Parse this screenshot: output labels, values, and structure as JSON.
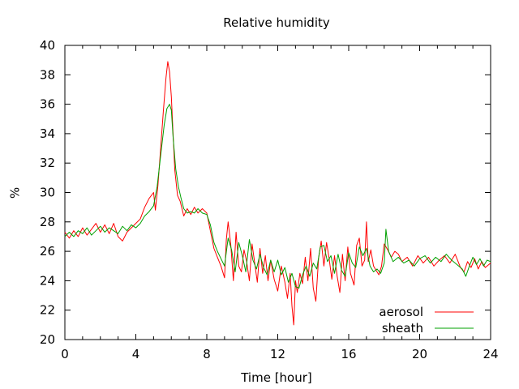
{
  "chart_data": {
    "type": "line",
    "title": "Relative humidity",
    "xlabel": "Time [hour]",
    "ylabel": "%",
    "xlim": [
      0,
      24
    ],
    "ylim": [
      20,
      40
    ],
    "x_ticks": [
      0,
      4,
      8,
      12,
      16,
      20,
      24
    ],
    "y_ticks": [
      20,
      22,
      24,
      26,
      28,
      30,
      32,
      34,
      36,
      38,
      40
    ],
    "grid": false,
    "legend_position": "bottom-right",
    "series": [
      {
        "name": "aerosol",
        "color": "#ff0000",
        "points": [
          [
            0.0,
            27.3
          ],
          [
            0.25,
            26.9
          ],
          [
            0.5,
            27.4
          ],
          [
            0.75,
            27.0
          ],
          [
            1.0,
            27.6
          ],
          [
            1.25,
            27.1
          ],
          [
            1.5,
            27.5
          ],
          [
            1.75,
            27.9
          ],
          [
            2.0,
            27.3
          ],
          [
            2.25,
            27.8
          ],
          [
            2.5,
            27.2
          ],
          [
            2.75,
            27.9
          ],
          [
            3.0,
            27.0
          ],
          [
            3.25,
            26.7
          ],
          [
            3.5,
            27.3
          ],
          [
            3.75,
            27.6
          ],
          [
            4.0,
            27.9
          ],
          [
            4.25,
            28.2
          ],
          [
            4.5,
            29.0
          ],
          [
            4.75,
            29.6
          ],
          [
            5.0,
            30.0
          ],
          [
            5.1,
            28.8
          ],
          [
            5.25,
            30.5
          ],
          [
            5.4,
            33.0
          ],
          [
            5.55,
            35.5
          ],
          [
            5.7,
            37.8
          ],
          [
            5.8,
            38.9
          ],
          [
            5.9,
            38.2
          ],
          [
            6.0,
            36.5
          ],
          [
            6.1,
            34.0
          ],
          [
            6.2,
            31.5
          ],
          [
            6.35,
            29.8
          ],
          [
            6.5,
            29.4
          ],
          [
            6.7,
            28.4
          ],
          [
            6.9,
            28.9
          ],
          [
            7.1,
            28.5
          ],
          [
            7.3,
            29.0
          ],
          [
            7.5,
            28.6
          ],
          [
            7.75,
            28.9
          ],
          [
            8.0,
            28.6
          ],
          [
            8.2,
            27.4
          ],
          [
            8.4,
            26.2
          ],
          [
            8.6,
            25.6
          ],
          [
            8.8,
            25.0
          ],
          [
            9.0,
            24.2
          ],
          [
            9.1,
            26.8
          ],
          [
            9.2,
            28.0
          ],
          [
            9.35,
            26.5
          ],
          [
            9.5,
            24.0
          ],
          [
            9.65,
            27.3
          ],
          [
            9.8,
            25.0
          ],
          [
            9.95,
            24.6
          ],
          [
            10.1,
            26.1
          ],
          [
            10.25,
            25.3
          ],
          [
            10.4,
            24.0
          ],
          [
            10.55,
            26.5
          ],
          [
            10.7,
            25.2
          ],
          [
            10.85,
            23.9
          ],
          [
            11.0,
            26.2
          ],
          [
            11.15,
            24.5
          ],
          [
            11.3,
            25.7
          ],
          [
            11.45,
            24.0
          ],
          [
            11.6,
            25.4
          ],
          [
            11.8,
            24.1
          ],
          [
            12.0,
            23.3
          ],
          [
            12.2,
            25.0
          ],
          [
            12.4,
            23.9
          ],
          [
            12.55,
            22.8
          ],
          [
            12.7,
            24.5
          ],
          [
            12.8,
            22.3
          ],
          [
            12.9,
            21.0
          ],
          [
            13.0,
            24.0
          ],
          [
            13.1,
            23.2
          ],
          [
            13.25,
            24.5
          ],
          [
            13.4,
            23.8
          ],
          [
            13.55,
            25.6
          ],
          [
            13.7,
            24.0
          ],
          [
            13.85,
            26.2
          ],
          [
            14.0,
            23.5
          ],
          [
            14.15,
            22.6
          ],
          [
            14.3,
            25.5
          ],
          [
            14.45,
            26.7
          ],
          [
            14.6,
            25.0
          ],
          [
            14.75,
            26.6
          ],
          [
            14.9,
            25.5
          ],
          [
            15.05,
            24.1
          ],
          [
            15.2,
            25.7
          ],
          [
            15.35,
            24.3
          ],
          [
            15.5,
            23.2
          ],
          [
            15.65,
            25.8
          ],
          [
            15.8,
            24.0
          ],
          [
            15.95,
            26.3
          ],
          [
            16.1,
            24.5
          ],
          [
            16.3,
            23.7
          ],
          [
            16.45,
            26.4
          ],
          [
            16.6,
            26.9
          ],
          [
            16.75,
            25.0
          ],
          [
            16.9,
            25.4
          ],
          [
            17.0,
            28.0
          ],
          [
            17.1,
            25.3
          ],
          [
            17.25,
            26.1
          ],
          [
            17.4,
            25.0
          ],
          [
            17.55,
            24.7
          ],
          [
            17.7,
            24.4
          ],
          [
            17.85,
            25.0
          ],
          [
            18.0,
            26.5
          ],
          [
            18.2,
            26.1
          ],
          [
            18.4,
            25.6
          ],
          [
            18.6,
            26.0
          ],
          [
            18.8,
            25.8
          ],
          [
            19.0,
            25.3
          ],
          [
            19.3,
            25.6
          ],
          [
            19.6,
            25.0
          ],
          [
            19.9,
            25.7
          ],
          [
            20.2,
            25.2
          ],
          [
            20.5,
            25.6
          ],
          [
            20.8,
            25.0
          ],
          [
            21.1,
            25.4
          ],
          [
            21.4,
            25.7
          ],
          [
            21.7,
            25.2
          ],
          [
            22.0,
            25.8
          ],
          [
            22.3,
            24.9
          ],
          [
            22.5,
            24.6
          ],
          [
            22.7,
            25.3
          ],
          [
            22.9,
            24.9
          ],
          [
            23.1,
            25.5
          ],
          [
            23.3,
            24.8
          ],
          [
            23.5,
            25.3
          ],
          [
            23.7,
            24.9
          ],
          [
            24.0,
            25.2
          ]
        ]
      },
      {
        "name": "sheath",
        "color": "#00a000",
        "points": [
          [
            0.0,
            27.0
          ],
          [
            0.25,
            27.3
          ],
          [
            0.5,
            27.0
          ],
          [
            0.75,
            27.4
          ],
          [
            1.0,
            27.2
          ],
          [
            1.25,
            27.6
          ],
          [
            1.5,
            27.1
          ],
          [
            1.75,
            27.4
          ],
          [
            2.0,
            27.7
          ],
          [
            2.25,
            27.3
          ],
          [
            2.5,
            27.6
          ],
          [
            2.75,
            27.4
          ],
          [
            3.0,
            27.2
          ],
          [
            3.25,
            27.7
          ],
          [
            3.5,
            27.4
          ],
          [
            3.75,
            27.8
          ],
          [
            4.0,
            27.6
          ],
          [
            4.25,
            27.9
          ],
          [
            4.5,
            28.4
          ],
          [
            4.75,
            28.7
          ],
          [
            5.0,
            29.1
          ],
          [
            5.2,
            30.4
          ],
          [
            5.4,
            32.5
          ],
          [
            5.6,
            34.6
          ],
          [
            5.75,
            35.7
          ],
          [
            5.9,
            36.0
          ],
          [
            6.0,
            35.6
          ],
          [
            6.1,
            33.8
          ],
          [
            6.25,
            31.6
          ],
          [
            6.4,
            30.4
          ],
          [
            6.55,
            29.6
          ],
          [
            6.7,
            28.9
          ],
          [
            6.9,
            28.6
          ],
          [
            7.1,
            28.7
          ],
          [
            7.3,
            28.6
          ],
          [
            7.5,
            28.9
          ],
          [
            7.75,
            28.6
          ],
          [
            8.0,
            28.5
          ],
          [
            8.2,
            27.8
          ],
          [
            8.4,
            26.6
          ],
          [
            8.6,
            26.0
          ],
          [
            8.8,
            25.5
          ],
          [
            9.0,
            25.0
          ],
          [
            9.2,
            26.9
          ],
          [
            9.4,
            26.1
          ],
          [
            9.6,
            24.6
          ],
          [
            9.8,
            26.6
          ],
          [
            10.0,
            25.7
          ],
          [
            10.2,
            24.6
          ],
          [
            10.4,
            26.8
          ],
          [
            10.6,
            25.4
          ],
          [
            10.8,
            24.8
          ],
          [
            11.0,
            25.8
          ],
          [
            11.2,
            24.9
          ],
          [
            11.4,
            24.4
          ],
          [
            11.6,
            25.4
          ],
          [
            11.8,
            24.6
          ],
          [
            12.0,
            25.4
          ],
          [
            12.2,
            24.4
          ],
          [
            12.4,
            24.9
          ],
          [
            12.6,
            23.9
          ],
          [
            12.8,
            24.5
          ],
          [
            13.0,
            23.6
          ],
          [
            13.2,
            23.5
          ],
          [
            13.4,
            24.4
          ],
          [
            13.6,
            25.0
          ],
          [
            13.8,
            24.3
          ],
          [
            14.0,
            25.2
          ],
          [
            14.2,
            24.8
          ],
          [
            14.4,
            26.3
          ],
          [
            14.6,
            26.4
          ],
          [
            14.8,
            25.3
          ],
          [
            15.0,
            25.7
          ],
          [
            15.2,
            24.5
          ],
          [
            15.4,
            25.8
          ],
          [
            15.6,
            24.7
          ],
          [
            15.8,
            24.3
          ],
          [
            16.0,
            25.9
          ],
          [
            16.2,
            25.2
          ],
          [
            16.4,
            24.9
          ],
          [
            16.6,
            26.3
          ],
          [
            16.8,
            25.7
          ],
          [
            17.0,
            26.2
          ],
          [
            17.2,
            25.0
          ],
          [
            17.4,
            24.6
          ],
          [
            17.6,
            24.8
          ],
          [
            17.8,
            24.5
          ],
          [
            18.0,
            25.2
          ],
          [
            18.1,
            27.5
          ],
          [
            18.25,
            26.0
          ],
          [
            18.5,
            25.3
          ],
          [
            18.8,
            25.6
          ],
          [
            19.1,
            25.2
          ],
          [
            19.4,
            25.4
          ],
          [
            19.7,
            25.0
          ],
          [
            20.0,
            25.5
          ],
          [
            20.3,
            25.7
          ],
          [
            20.6,
            25.2
          ],
          [
            20.9,
            25.6
          ],
          [
            21.2,
            25.3
          ],
          [
            21.5,
            25.8
          ],
          [
            21.8,
            25.4
          ],
          [
            22.1,
            25.1
          ],
          [
            22.4,
            24.8
          ],
          [
            22.6,
            24.3
          ],
          [
            22.8,
            25.0
          ],
          [
            23.0,
            25.6
          ],
          [
            23.2,
            25.1
          ],
          [
            23.4,
            25.5
          ],
          [
            23.6,
            25.0
          ],
          [
            23.8,
            25.4
          ],
          [
            24.0,
            25.3
          ]
        ]
      }
    ]
  }
}
